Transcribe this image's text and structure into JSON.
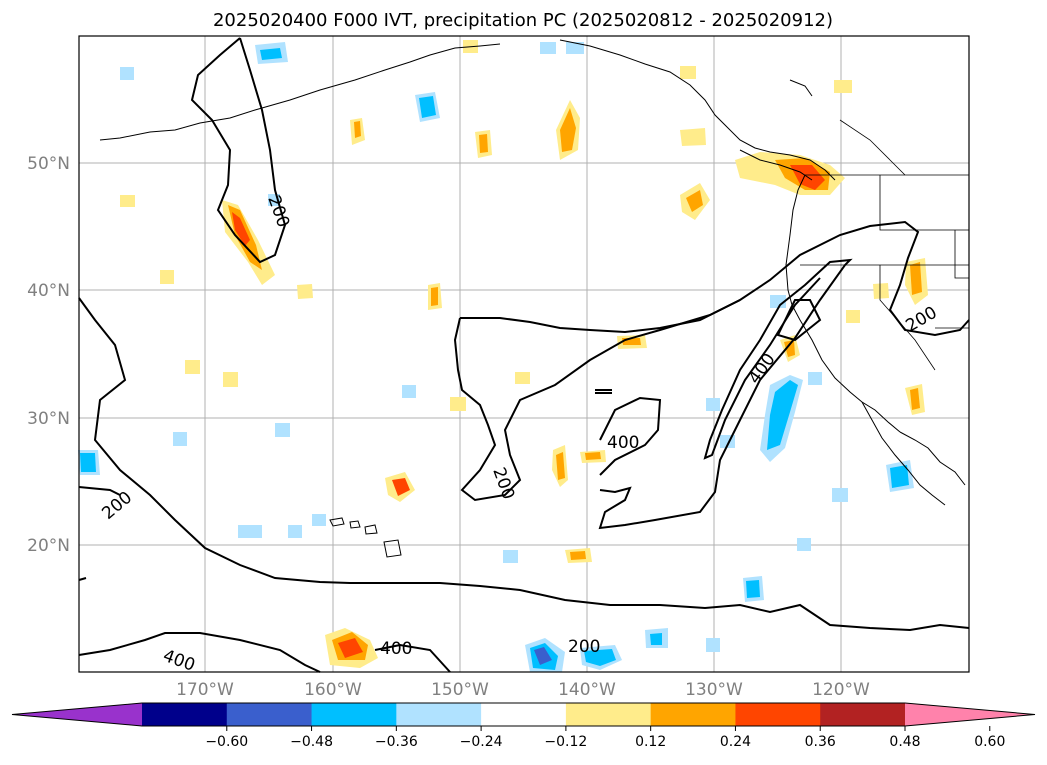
{
  "title": "2025020400 F000 IVT, precipitation PC (2025020812 - 2025020912)",
  "lat_labels": [
    "50°N",
    "40°N",
    "30°N",
    "20°N"
  ],
  "lon_labels": [
    "170°W",
    "160°W",
    "150°W",
    "140°W",
    "130°W",
    "120°W"
  ],
  "colorbar": {
    "ticks": [
      "−0.60",
      "−0.48",
      "−0.36",
      "−0.24",
      "−0.12",
      "0.12",
      "0.24",
      "0.36",
      "0.48",
      "0.60"
    ],
    "colors": [
      "#9932cc",
      "#00008b",
      "#3a5fcd",
      "#00bfff",
      "#b0e2ff",
      "#ffffff",
      "#ffec8b",
      "#ffa500",
      "#ff4500",
      "#b22222",
      "#ff82ab"
    ]
  },
  "contour_labels": [
    "200",
    "200",
    "200",
    "400",
    "400",
    "400",
    "400",
    "200",
    "200"
  ],
  "icons": [
    "coastline-map",
    "state-borders",
    "ivt-contours"
  ]
}
